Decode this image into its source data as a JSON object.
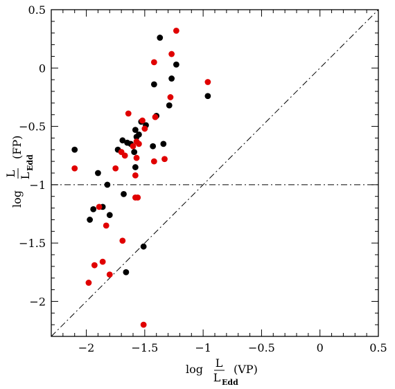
{
  "chart_data": {
    "type": "scatter",
    "title": "",
    "xlabel": {
      "prefix": "log",
      "numerator": "L",
      "denominator": "L",
      "subscript": "Edd",
      "suffix": "(VP)"
    },
    "ylabel": {
      "prefix": "log",
      "numerator": "L",
      "denominator": "L",
      "subscript": "Edd",
      "suffix": "(FP)"
    },
    "xlim": [
      -2.3,
      0.5
    ],
    "ylim": [
      -2.3,
      0.5
    ],
    "grid": false,
    "legend": "none",
    "x_ticks": [
      {
        "value": -2,
        "label": "−2"
      },
      {
        "value": -1.5,
        "label": "−1.5"
      },
      {
        "value": -1,
        "label": "−1"
      },
      {
        "value": -0.5,
        "label": "−0.5"
      },
      {
        "value": 0,
        "label": "0"
      },
      {
        "value": 0.5,
        "label": "0.5"
      }
    ],
    "y_ticks": [
      {
        "value": -2,
        "label": "−2"
      },
      {
        "value": -1.5,
        "label": "−1.5"
      },
      {
        "value": -1,
        "label": "−1"
      },
      {
        "value": -0.5,
        "label": "−0.5"
      },
      {
        "value": 0,
        "label": "0"
      },
      {
        "value": 0.5,
        "label": "0.5"
      }
    ],
    "reference_lines": [
      {
        "kind": "one-to-one",
        "style": "dash-dot",
        "color": "#000000"
      },
      {
        "kind": "horizontal",
        "y": -1,
        "style": "dash-dot",
        "color": "#000000"
      }
    ],
    "series": [
      {
        "color": "#000000",
        "points": [
          [
            -2.1,
            -0.7
          ],
          [
            -1.97,
            -1.3
          ],
          [
            -1.94,
            -1.21
          ],
          [
            -1.9,
            -0.9
          ],
          [
            -1.86,
            -1.19
          ],
          [
            -1.82,
            -1.0
          ],
          [
            -1.8,
            -1.26
          ],
          [
            -1.73,
            -0.7
          ],
          [
            -1.69,
            -0.62
          ],
          [
            -1.68,
            -1.08
          ],
          [
            -1.66,
            -1.75
          ],
          [
            -1.65,
            -0.64
          ],
          [
            -1.62,
            -0.65
          ],
          [
            -1.59,
            -0.72
          ],
          [
            -1.58,
            -0.85
          ],
          [
            -1.58,
            -0.53
          ],
          [
            -1.57,
            -0.59
          ],
          [
            -1.55,
            -0.57
          ],
          [
            -1.53,
            -0.46
          ],
          [
            -1.51,
            -1.53
          ],
          [
            -1.49,
            -0.49
          ],
          [
            -1.43,
            -0.67
          ],
          [
            -1.42,
            -0.14
          ],
          [
            -1.4,
            -0.41
          ],
          [
            -1.37,
            0.26
          ],
          [
            -1.34,
            -0.65
          ],
          [
            -1.29,
            -0.32
          ],
          [
            -1.27,
            -0.09
          ],
          [
            -1.23,
            0.03
          ],
          [
            -0.96,
            -0.24
          ]
        ]
      },
      {
        "color": "#e00000",
        "points": [
          [
            -2.1,
            -0.86
          ],
          [
            -1.98,
            -1.84
          ],
          [
            -1.93,
            -1.69
          ],
          [
            -1.89,
            -1.19
          ],
          [
            -1.86,
            -1.66
          ],
          [
            -1.83,
            -1.35
          ],
          [
            -1.8,
            -1.77
          ],
          [
            -1.75,
            -0.86
          ],
          [
            -1.7,
            -0.72
          ],
          [
            -1.69,
            -1.48
          ],
          [
            -1.67,
            -0.75
          ],
          [
            -1.64,
            -0.39
          ],
          [
            -1.6,
            -0.67
          ],
          [
            -1.58,
            -1.11
          ],
          [
            -1.58,
            -0.92
          ],
          [
            -1.57,
            -0.63
          ],
          [
            -1.57,
            -0.77
          ],
          [
            -1.56,
            -1.11
          ],
          [
            -1.55,
            -0.65
          ],
          [
            -1.52,
            -0.45
          ],
          [
            -1.51,
            -2.2
          ],
          [
            -1.5,
            -0.52
          ],
          [
            -1.42,
            0.05
          ],
          [
            -1.42,
            -0.8
          ],
          [
            -1.41,
            -0.42
          ],
          [
            -1.33,
            -0.78
          ],
          [
            -1.28,
            -0.25
          ],
          [
            -1.27,
            0.12
          ],
          [
            -1.23,
            0.32
          ],
          [
            -0.96,
            -0.12
          ]
        ]
      }
    ]
  }
}
